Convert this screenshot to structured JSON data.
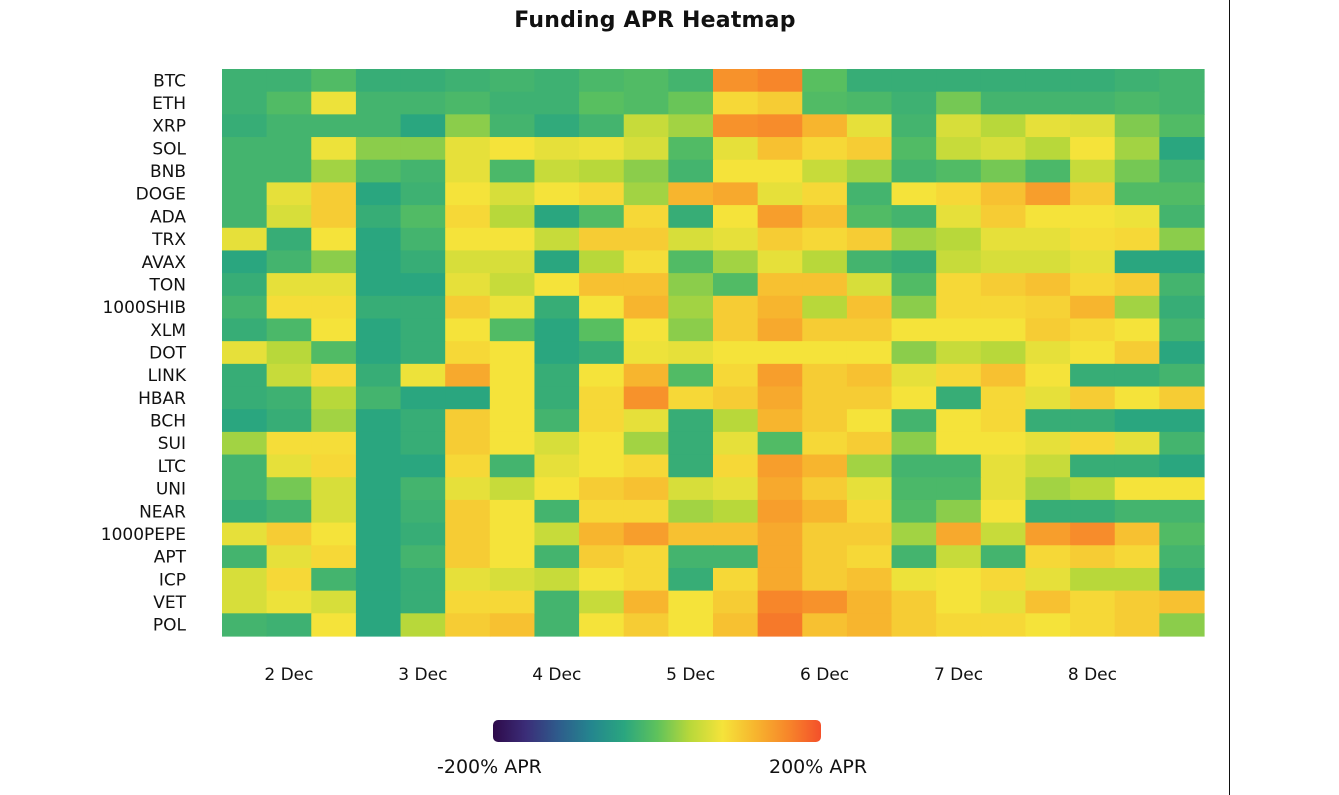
{
  "chart_data": {
    "type": "heatmap",
    "title": "Funding APR Heatmap",
    "rows": [
      "BTC",
      "ETH",
      "XRP",
      "SOL",
      "BNB",
      "DOGE",
      "ADA",
      "TRX",
      "AVAX",
      "TON",
      "1000SHIB",
      "XLM",
      "DOT",
      "LINK",
      "HBAR",
      "BCH",
      "SUI",
      "LTC",
      "UNI",
      "NEAR",
      "1000PEPE",
      "APT",
      "ICP",
      "VET",
      "POL"
    ],
    "x_tick_labels": [
      "2 Dec",
      "3 Dec",
      "4 Dec",
      "5 Dec",
      "6 Dec",
      "7 Dec",
      "8 Dec"
    ],
    "columns_per_day": 3,
    "num_columns": 22,
    "value_range": [
      -200,
      200
    ],
    "colorbar_min_label": "-200% APR",
    "colorbar_max_label": "200% APR",
    "colormap": [
      "#2e0a4a",
      "#3b2d78",
      "#2e5c8c",
      "#24868e",
      "#2aa67f",
      "#5ec25c",
      "#b8d83a",
      "#f5e33a",
      "#f7b52e",
      "#f7862a",
      "#f4502a"
    ],
    "values": [
      [
        -25,
        -25,
        -10,
        -30,
        -30,
        -25,
        -20,
        -25,
        -15,
        -10,
        -20,
        150,
        160,
        -5,
        -30,
        -30,
        -30,
        -30,
        -30,
        -30,
        -25,
        -20
      ],
      [
        -25,
        -10,
        75,
        -20,
        -20,
        -15,
        -25,
        -25,
        -5,
        -10,
        5,
        90,
        100,
        -10,
        -15,
        -25,
        10,
        -20,
        -20,
        -20,
        -15,
        -20
      ],
      [
        -30,
        -20,
        -20,
        -20,
        -40,
        20,
        -20,
        -35,
        -20,
        50,
        30,
        150,
        155,
        120,
        70,
        -20,
        60,
        40,
        70,
        65,
        15,
        -10
      ],
      [
        -20,
        -20,
        75,
        20,
        20,
        70,
        80,
        70,
        75,
        60,
        -10,
        70,
        110,
        90,
        100,
        -10,
        50,
        60,
        40,
        80,
        30,
        -40
      ],
      [
        -20,
        -20,
        30,
        -10,
        -20,
        70,
        -15,
        50,
        40,
        20,
        -20,
        80,
        80,
        50,
        30,
        -20,
        -10,
        10,
        -15,
        50,
        10,
        -20
      ],
      [
        -20,
        70,
        100,
        -40,
        -25,
        80,
        60,
        80,
        90,
        30,
        120,
        130,
        70,
        90,
        -20,
        80,
        90,
        110,
        140,
        100,
        -10,
        -10
      ],
      [
        -20,
        60,
        100,
        -30,
        -10,
        90,
        40,
        -40,
        -10,
        90,
        -30,
        80,
        140,
        110,
        -10,
        -20,
        70,
        100,
        80,
        80,
        75,
        -20
      ],
      [
        70,
        -30,
        80,
        -40,
        -20,
        80,
        80,
        50,
        100,
        100,
        60,
        70,
        100,
        90,
        100,
        30,
        40,
        70,
        70,
        85,
        90,
        20
      ],
      [
        -40,
        -20,
        20,
        -40,
        -30,
        60,
        60,
        -40,
        40,
        85,
        -10,
        30,
        70,
        40,
        -20,
        -30,
        50,
        60,
        60,
        70,
        -40,
        -40
      ],
      [
        -30,
        70,
        70,
        -40,
        -40,
        70,
        50,
        80,
        110,
        110,
        20,
        -10,
        110,
        110,
        60,
        -10,
        90,
        100,
        110,
        90,
        100,
        -20
      ],
      [
        -20,
        85,
        85,
        -30,
        -30,
        100,
        75,
        -30,
        80,
        120,
        30,
        100,
        120,
        40,
        110,
        20,
        90,
        90,
        95,
        120,
        30,
        -30
      ],
      [
        -30,
        -15,
        80,
        -40,
        -30,
        80,
        -10,
        -40,
        -5,
        80,
        20,
        100,
        130,
        100,
        100,
        80,
        80,
        80,
        100,
        90,
        80,
        -20
      ],
      [
        70,
        40,
        -10,
        -40,
        -30,
        90,
        80,
        -40,
        -30,
        75,
        70,
        80,
        80,
        80,
        80,
        20,
        50,
        40,
        70,
        80,
        100,
        -40
      ],
      [
        -30,
        50,
        90,
        -30,
        75,
        130,
        80,
        -30,
        80,
        120,
        -10,
        90,
        140,
        100,
        110,
        70,
        90,
        110,
        80,
        -30,
        -30,
        -20
      ],
      [
        -30,
        -25,
        40,
        -20,
        -40,
        -40,
        80,
        -30,
        90,
        150,
        90,
        100,
        130,
        100,
        100,
        80,
        -30,
        90,
        70,
        100,
        80,
        100
      ],
      [
        -40,
        -30,
        30,
        -40,
        -30,
        100,
        80,
        -20,
        90,
        70,
        -30,
        40,
        120,
        100,
        80,
        -20,
        80,
        90,
        -30,
        -30,
        -40,
        -40
      ],
      [
        30,
        85,
        85,
        -40,
        -30,
        100,
        80,
        60,
        80,
        30,
        -30,
        70,
        -10,
        90,
        100,
        20,
        80,
        80,
        70,
        90,
        70,
        -20
      ],
      [
        -20,
        70,
        90,
        -40,
        -40,
        90,
        -20,
        70,
        80,
        90,
        -30,
        90,
        140,
        120,
        30,
        -20,
        -20,
        70,
        50,
        -30,
        -30,
        -40
      ],
      [
        -20,
        10,
        60,
        -40,
        -20,
        70,
        50,
        80,
        100,
        110,
        60,
        70,
        130,
        100,
        70,
        -15,
        -15,
        70,
        30,
        40,
        80,
        80
      ],
      [
        -30,
        -20,
        60,
        -40,
        -25,
        100,
        80,
        -20,
        90,
        90,
        30,
        40,
        140,
        120,
        90,
        -10,
        20,
        80,
        -30,
        -30,
        -20,
        -20
      ],
      [
        70,
        100,
        80,
        -40,
        -30,
        100,
        80,
        50,
        120,
        140,
        110,
        110,
        130,
        100,
        100,
        30,
        130,
        50,
        140,
        155,
        110,
        -10
      ],
      [
        -20,
        70,
        90,
        -40,
        -20,
        100,
        80,
        -20,
        100,
        90,
        -20,
        -20,
        130,
        100,
        90,
        -20,
        50,
        -20,
        90,
        100,
        90,
        -20
      ],
      [
        60,
        90,
        -20,
        -40,
        -30,
        70,
        60,
        50,
        80,
        90,
        -30,
        90,
        130,
        100,
        110,
        75,
        80,
        90,
        70,
        40,
        40,
        -30
      ],
      [
        60,
        75,
        60,
        -40,
        -30,
        90,
        90,
        -20,
        50,
        120,
        80,
        100,
        160,
        150,
        120,
        100,
        80,
        70,
        110,
        90,
        100,
        110
      ],
      [
        -20,
        -25,
        80,
        -40,
        40,
        100,
        110,
        -20,
        80,
        100,
        80,
        110,
        170,
        110,
        120,
        100,
        90,
        90,
        80,
        90,
        100,
        20
      ]
    ]
  }
}
